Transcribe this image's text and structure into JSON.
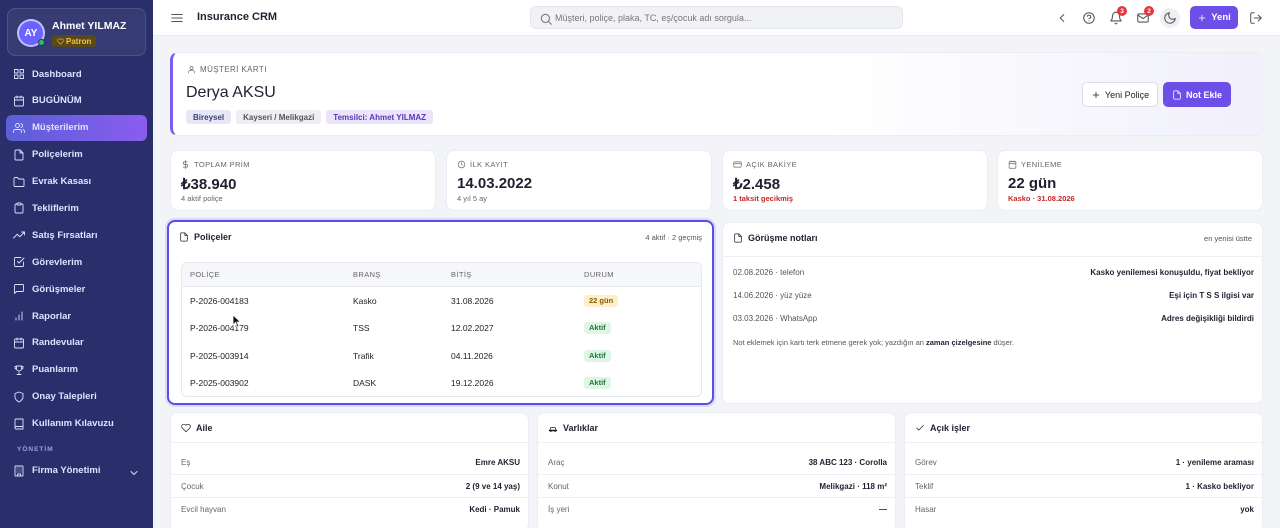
{
  "user": {
    "initials": "AY",
    "name": "Ahmet YILMAZ",
    "role": "Patron"
  },
  "nav": {
    "items": [
      {
        "label": "Dashboard",
        "icon": "grid-icon"
      },
      {
        "label": "BUGÜNÜM",
        "icon": "calendar-icon"
      },
      {
        "label": "Müşterilerim",
        "icon": "users-icon",
        "active": true
      },
      {
        "label": "Poliçelerim",
        "icon": "file-icon"
      },
      {
        "label": "Evrak Kasası",
        "icon": "folder-icon"
      },
      {
        "label": "Tekliflerim",
        "icon": "clipboard-icon"
      },
      {
        "label": "Satış Fırsatları",
        "icon": "trend-icon"
      },
      {
        "label": "Görevlerim",
        "icon": "check-square-icon"
      },
      {
        "label": "Görüşmeler",
        "icon": "chat-icon"
      },
      {
        "label": "Raporlar",
        "icon": "bar-chart-icon"
      },
      {
        "label": "Randevular",
        "icon": "calendar-icon"
      },
      {
        "label": "Puanlarım",
        "icon": "trophy-icon"
      },
      {
        "label": "Onay Talepleri",
        "icon": "shield-icon"
      },
      {
        "label": "Kullanım Kılavuzu",
        "icon": "book-icon"
      }
    ],
    "section_label": "YÖNETİM",
    "admin_item": "Firma Yönetimi"
  },
  "topbar": {
    "title": "Insurance CRM",
    "search_placeholder": "Müşteri, poliçe, plaka, TC, eş/çocuk adı sorgula...",
    "notifications_count": "3",
    "messages_count": "2",
    "new_label": "Yeni"
  },
  "customer": {
    "kicker": "MÜŞTERİ KARTI",
    "name": "Derya AKSU",
    "chips": [
      "Bireysel",
      "Kayseri / Melikgazi",
      "Temsilci: Ahmet YILMAZ"
    ],
    "new_policy_label": "Yeni Poliçe",
    "add_note_label": "Not Ekle"
  },
  "stats": [
    {
      "label": "TOPLAM PRİM",
      "value": "₺38.940",
      "sub": "4 aktif poliçe",
      "icon": "dollar-icon"
    },
    {
      "label": "İLK KAYIT",
      "value": "14.03.2022",
      "sub": "4 yıl 5 ay",
      "icon": "clock-icon"
    },
    {
      "label": "AÇIK BAKİYE",
      "value": "₺2.458",
      "sub": "1 taksit gecikmiş",
      "icon": "credit-card-icon"
    },
    {
      "label": "YENİLEME",
      "value": "22 gün",
      "sub": "Kasko · 31.08.2026",
      "icon": "calendar-icon"
    }
  ],
  "policies": {
    "title": "Poliçeler",
    "meta": "4 aktif · 2 geçmiş",
    "columns": [
      "POLİÇE",
      "BRANŞ",
      "BİTİŞ",
      "DURUM"
    ],
    "rows": [
      {
        "no": "P-2026-004183",
        "branch": "Kasko",
        "end": "31.08.2026",
        "status": "22 gün",
        "status_type": "warn"
      },
      {
        "no": "P-2026-004179",
        "branch": "TSS",
        "end": "12.02.2027",
        "status": "Aktif",
        "status_type": "ok"
      },
      {
        "no": "P-2025-003914",
        "branch": "Trafik",
        "end": "04.11.2026",
        "status": "Aktif",
        "status_type": "ok"
      },
      {
        "no": "P-2025-003902",
        "branch": "DASK",
        "end": "19.12.2026",
        "status": "Aktif",
        "status_type": "ok"
      }
    ]
  },
  "notes": {
    "title": "Görüşme notları",
    "meta": "en yenisi üstte",
    "items": [
      {
        "date": "02.08.2026 · telefon",
        "text": "Kasko yenilemesi konuşuldu, fiyat bekliyor"
      },
      {
        "date": "14.06.2026 · yüz yüze",
        "text": "Eşi için T S S ilgisi var"
      },
      {
        "date": "03.03.2026 · WhatsApp",
        "text": "Adres değişikliği bildirdi"
      }
    ],
    "hint_before": "Not eklemek için kartı terk etmene gerek yok; yazdığın an ",
    "hint_bold": "zaman çizelgesine",
    "hint_after": " düşer."
  },
  "family": {
    "title": "Aile",
    "rows": [
      {
        "k": "Eş",
        "v": "Emre AKSU"
      },
      {
        "k": "Çocuk",
        "v": "2 (9 ve 14 yaş)"
      },
      {
        "k": "Evcil hayvan",
        "v": "Kedi · Pamuk"
      }
    ]
  },
  "assets": {
    "title": "Varlıklar",
    "rows": [
      {
        "k": "Araç",
        "v": "38 ABC 123 · Corolla"
      },
      {
        "k": "Konut",
        "v": "Melikgazi · 118 m²"
      },
      {
        "k": "İş yeri",
        "v": "—"
      }
    ]
  },
  "open_tasks": {
    "title": "Açık işler",
    "rows": [
      {
        "k": "Görev",
        "v": "1 · yenileme araması"
      },
      {
        "k": "Teklif",
        "v": "1 · Kasko bekliyor"
      },
      {
        "k": "Hasar",
        "v": "yok"
      }
    ]
  }
}
